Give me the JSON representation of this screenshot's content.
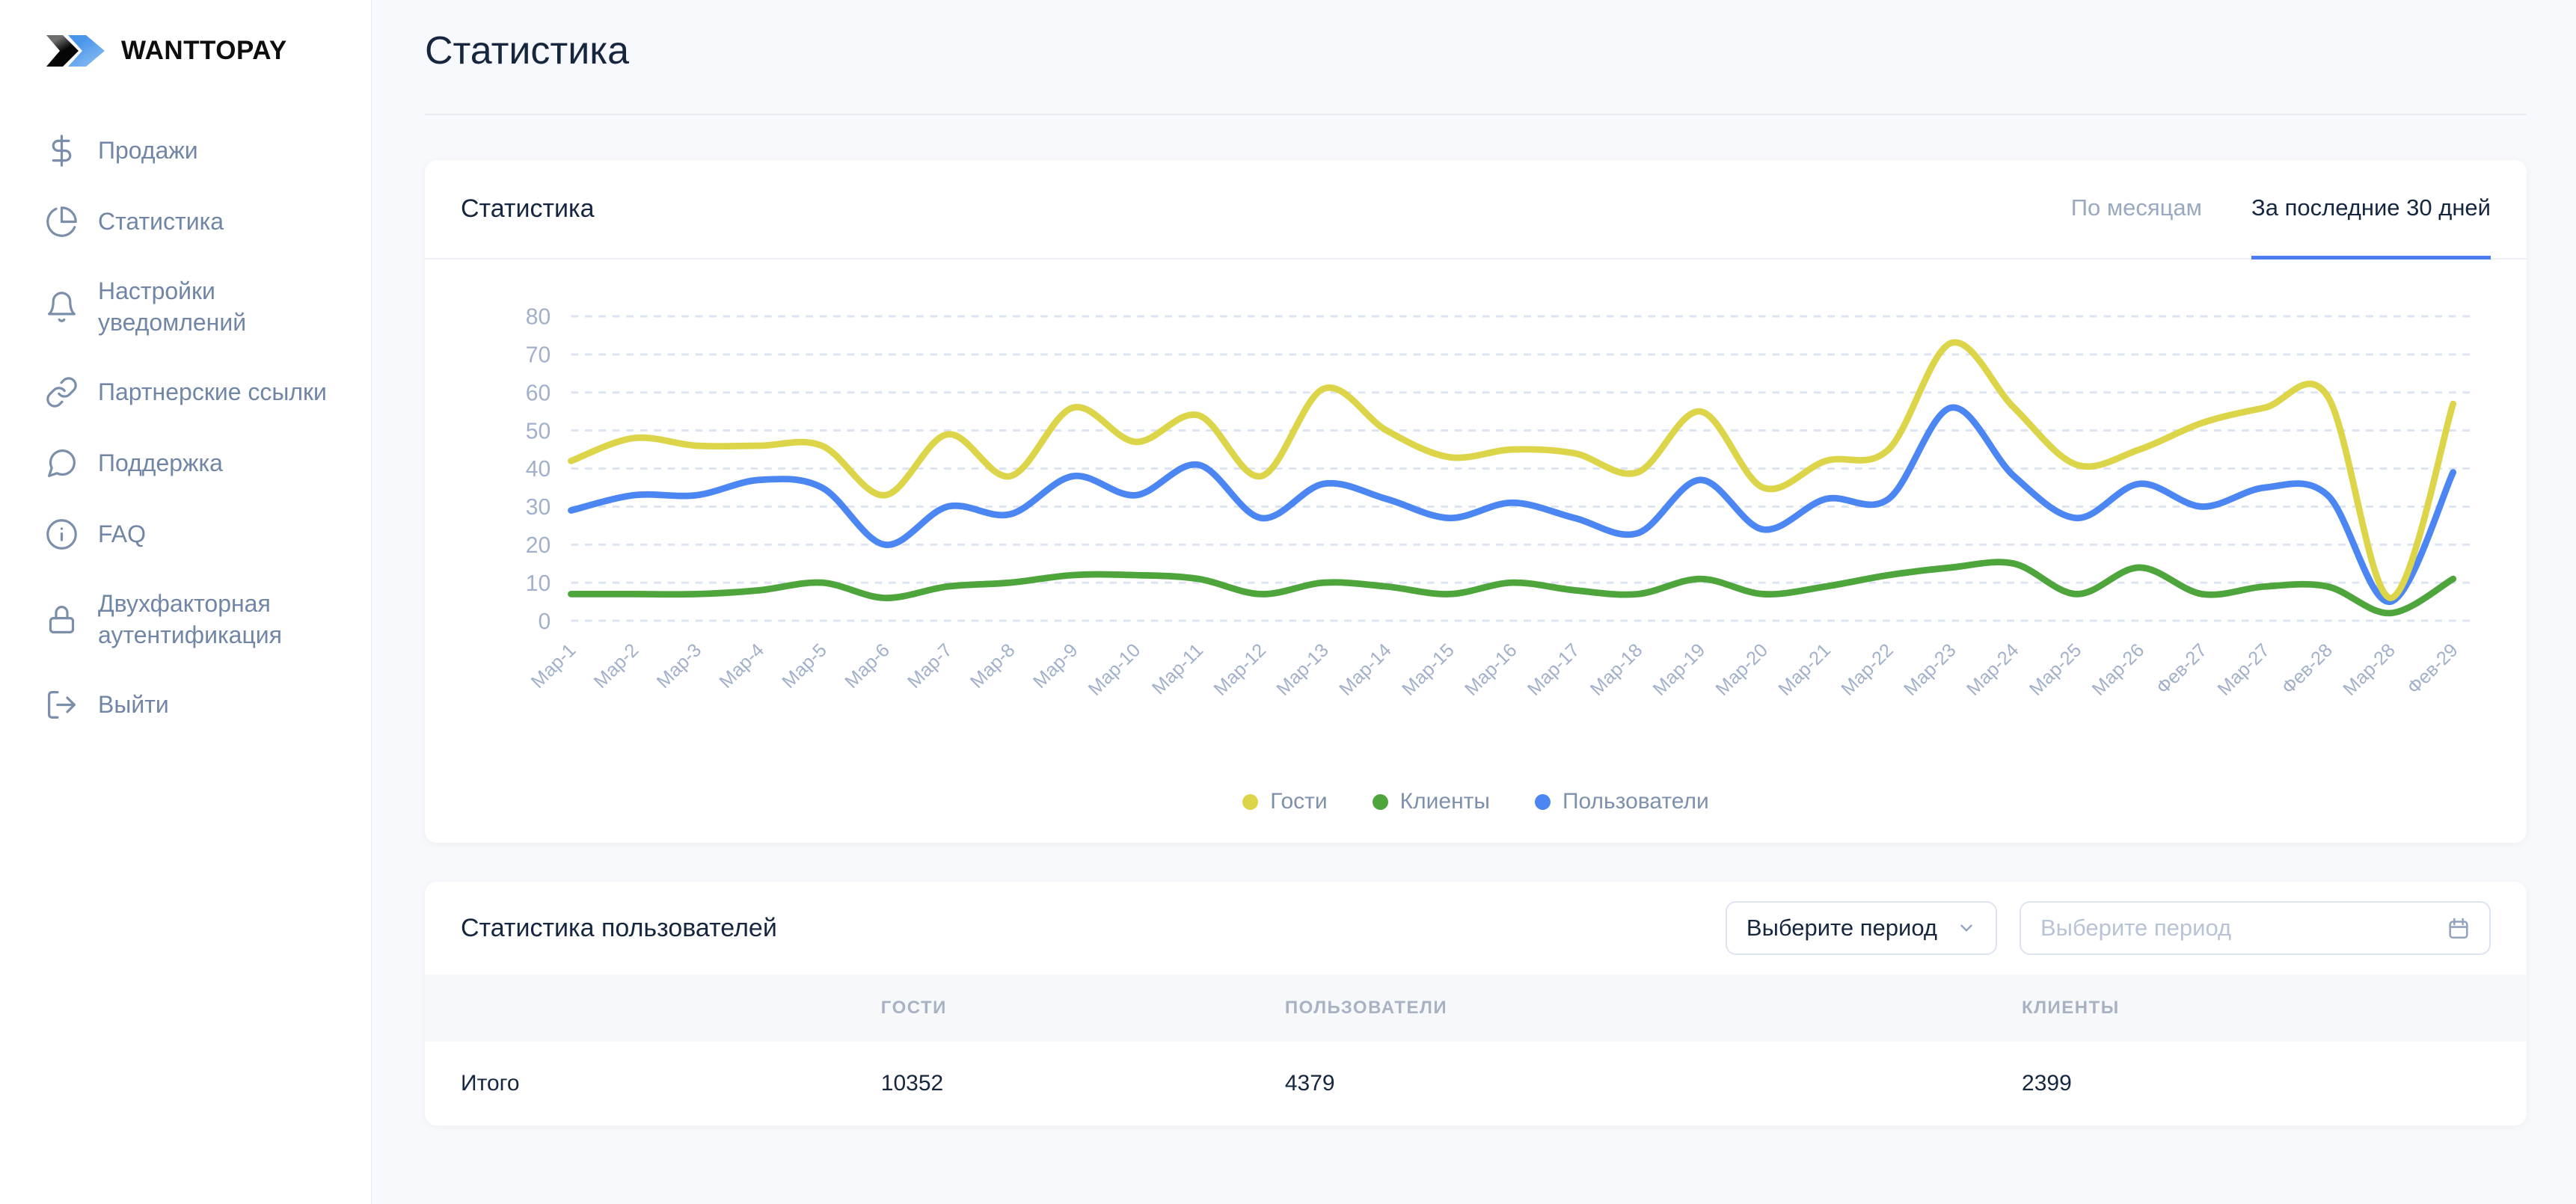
{
  "sidebar": {
    "brand": "WANTTOPAY",
    "items": [
      {
        "name": "sales",
        "icon": "dollar-icon",
        "label": "Продажи"
      },
      {
        "name": "statistics",
        "icon": "pie-chart-icon",
        "label": "Статистика"
      },
      {
        "name": "notification-settings",
        "icon": "bell-icon",
        "label": "Настройки уведомлений"
      },
      {
        "name": "partner-links",
        "icon": "link-icon",
        "label": "Партнерские ссылки"
      },
      {
        "name": "support",
        "icon": "chat-icon",
        "label": "Поддержка"
      },
      {
        "name": "faq",
        "icon": "info-icon",
        "label": "FAQ"
      },
      {
        "name": "two-factor-auth",
        "icon": "lock-icon",
        "label": "Двухфакторная аутентификация"
      },
      {
        "name": "logout",
        "icon": "logout-icon",
        "label": "Выйти"
      }
    ]
  },
  "page": {
    "title": "Статистика"
  },
  "stats_card": {
    "title": "Статистика",
    "tabs": [
      {
        "key": "by-months",
        "label": "По месяцам",
        "active": false
      },
      {
        "key": "last-30-days",
        "label": "За последние 30 дней",
        "active": true
      }
    ]
  },
  "chart_data": {
    "type": "line",
    "x": [
      "Мар-1",
      "Мар-2",
      "Мар-3",
      "Мар-4",
      "Мар-5",
      "Мар-6",
      "Мар-7",
      "Мар-8",
      "Мар-9",
      "Мар-10",
      "Мар-11",
      "Мар-12",
      "Мар-13",
      "Мар-14",
      "Мар-15",
      "Мар-16",
      "Мар-17",
      "Мар-18",
      "Мар-19",
      "Мар-20",
      "Мар-21",
      "Мар-22",
      "Мар-23",
      "Мар-24",
      "Мар-25",
      "Мар-26",
      "Фев-27",
      "Мар-27",
      "Фев-28",
      "Мар-28",
      "Фев-29"
    ],
    "series": [
      {
        "key": "guests",
        "name": "Гости",
        "color": "#dcd54a",
        "values": [
          42,
          48,
          46,
          46,
          46,
          33,
          49,
          38,
          56,
          47,
          54,
          38,
          61,
          50,
          43,
          45,
          44,
          39,
          55,
          35,
          42,
          45,
          73,
          56,
          41,
          45,
          52,
          56,
          59,
          6,
          57
        ]
      },
      {
        "key": "clients",
        "name": "Клиенты",
        "color": "#4da53c",
        "values": [
          7,
          7,
          7,
          8,
          10,
          6,
          9,
          10,
          12,
          12,
          11,
          7,
          10,
          9,
          7,
          10,
          8,
          7,
          11,
          7,
          9,
          12,
          14,
          15,
          7,
          14,
          7,
          9,
          9,
          2,
          11
        ]
      },
      {
        "key": "users",
        "name": "Пользователи",
        "color": "#4b86f2",
        "values": [
          29,
          33,
          33,
          37,
          35,
          20,
          30,
          28,
          38,
          33,
          41,
          27,
          36,
          32,
          27,
          31,
          27,
          23,
          37,
          24,
          32,
          32,
          56,
          38,
          27,
          36,
          30,
          35,
          33,
          5,
          39
        ]
      }
    ],
    "ylim": [
      0,
      80
    ],
    "yticks": [
      0,
      10,
      20,
      30,
      40,
      50,
      60,
      70,
      80
    ],
    "grid": "horizontal-dashed",
    "legend_position": "bottom-center",
    "x_label_rotation": -45
  },
  "users_card": {
    "title": "Статистика пользователей",
    "period_select": {
      "label": "Выберите период"
    },
    "period_input": {
      "placeholder": "Выберите период"
    },
    "table": {
      "headers": [
        "ГОСТИ",
        "ПОЛЬЗОВАТЕЛИ",
        "КЛИЕНТЫ"
      ],
      "rows": [
        {
          "label": "Итого",
          "values": [
            "10352",
            "4379",
            "2399"
          ]
        }
      ]
    }
  },
  "colors": {
    "accent_blue": "#4d7df0",
    "guests_line": "#dcd54a",
    "clients_line": "#4da53c",
    "users_line": "#4b86f2",
    "axis_text": "#a2b0ca",
    "sidebar_text": "#7186a7"
  }
}
